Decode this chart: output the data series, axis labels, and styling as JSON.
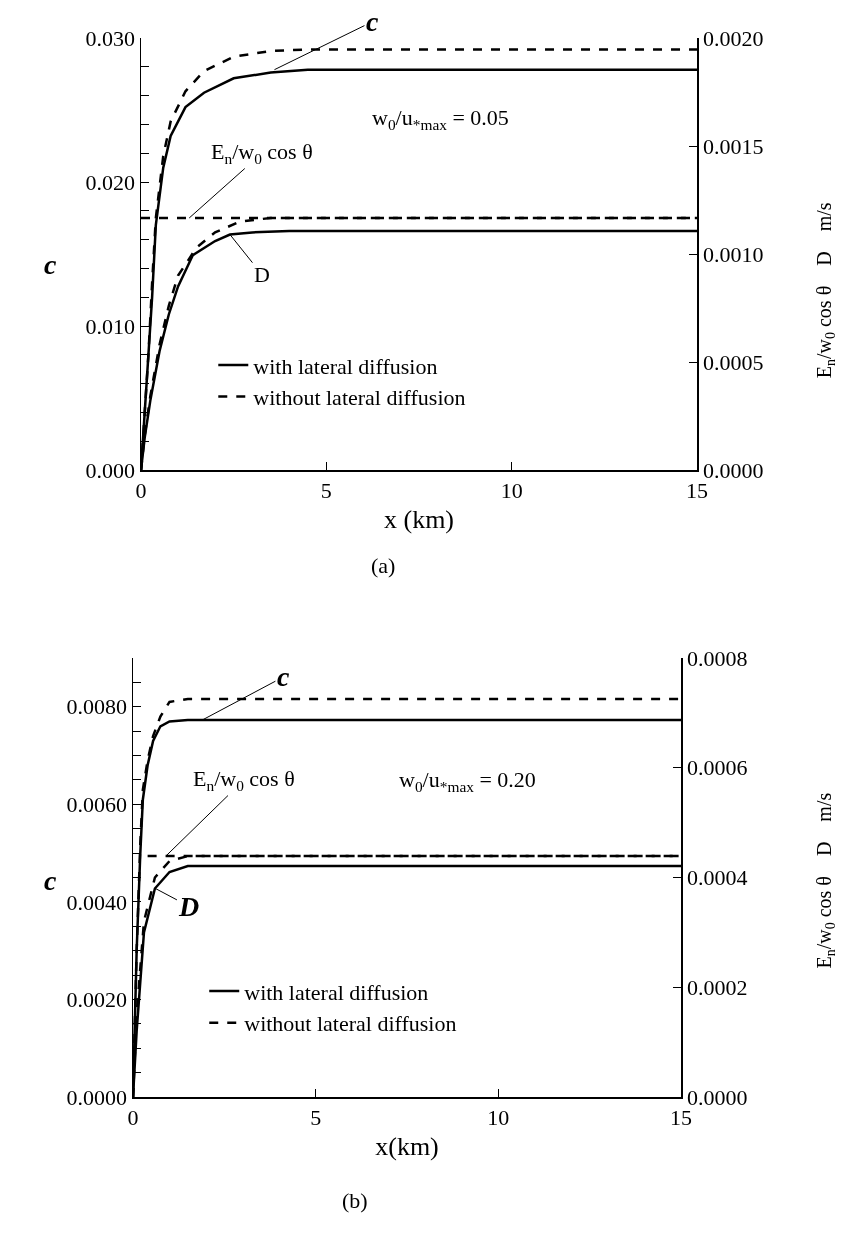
{
  "chart_data": [
    {
      "type": "line",
      "xlabel": "x (km)",
      "ylabel": "c",
      "y2label": "E$_{n}$/w$_{0}$ cos θ    D    m/s",
      "legend": "bottom left",
      "annotations": [
        {
          "text": "c",
          "x": 3.6,
          "y": 0.0278
        },
        "w$_{0}$/u$_{*max}$ = 0.05",
        {
          "text": "E$_{n}$/w$_{0}$ cos θ",
          "x": 1.3,
          "y": 0.0175
        },
        {
          "text": "D",
          "x": 2.4,
          "y": 0.01635
        },
        "(a)"
      ],
      "xlim": [
        0,
        15
      ],
      "xticks": [
        0,
        5,
        10,
        15
      ],
      "ylim": [
        0,
        0.03
      ],
      "yticks": [
        {
          "value": 0,
          "label": "0.000"
        },
        {
          "value": 0.002,
          "label": null
        },
        {
          "value": 0.004,
          "label": null
        },
        {
          "value": 0.006,
          "label": null
        },
        {
          "value": 0.008,
          "label": null
        },
        {
          "value": 0.01,
          "label": "0.010"
        },
        {
          "value": 0.012,
          "label": null
        },
        {
          "value": 0.014,
          "label": null
        },
        {
          "value": 0.016,
          "label": null
        },
        {
          "value": 0.018,
          "label": null
        },
        {
          "value": 0.02,
          "label": "0.020"
        },
        {
          "value": 0.022,
          "label": null
        },
        {
          "value": 0.024,
          "label": null
        },
        {
          "value": 0.026,
          "label": null
        },
        {
          "value": 0.028,
          "label": null
        },
        {
          "value": 0.03,
          "label": "0.030"
        }
      ],
      "y2lim": [
        0,
        0.002
      ],
      "y2ticks": [
        {
          "value": 0,
          "label": "0.0000"
        },
        {
          "value": 0.0005,
          "label": "0.0005"
        },
        {
          "value": 0.001,
          "label": "0.0010"
        },
        {
          "value": 0.0015,
          "label": "0.0015"
        },
        {
          "value": 0.002,
          "label": "0.0020"
        }
      ],
      "series": [
        {
          "name": "with lateral diffusion",
          "color": "#000000",
          "line_style": "solid",
          "x": [
            0,
            0.1,
            0.2,
            0.3,
            0.4,
            0.6,
            0.8,
            1.2,
            1.7,
            2.5,
            3.5,
            4.5,
            15
          ],
          "values": [
            0,
            0.004,
            0.008,
            0.012,
            0.017,
            0.021,
            0.0232,
            0.0252,
            0.0262,
            0.0272,
            0.0276,
            0.0278,
            0.0278
          ]
        },
        {
          "name": "without lateral diffusion",
          "color": "#000000",
          "line_style": "dashed",
          "x": [
            0,
            0.1,
            0.2,
            0.3,
            0.4,
            0.6,
            0.8,
            1.2,
            1.7,
            2.5,
            3.5,
            4.5,
            15
          ],
          "values": [
            0,
            0.004,
            0.008,
            0.013,
            0.0175,
            0.0218,
            0.0242,
            0.0263,
            0.0277,
            0.0287,
            0.0291,
            0.0292,
            0.0292
          ]
        },
        {
          "color": "#000000",
          "line_style": "solid",
          "axis": "y2",
          "x": [
            0,
            0.1,
            0.25,
            0.5,
            0.75,
            1,
            1.4,
            2,
            2.4,
            3,
            4,
            15
          ],
          "values": [
            0,
            0.00015,
            0.00032,
            0.00055,
            0.00072,
            0.00085,
            0.000995,
            0.00106,
            0.00109,
            0.0011,
            0.001106,
            0.001106
          ]
        },
        {
          "color": "#000000",
          "line_style": "dashed",
          "axis": "y2",
          "x": [
            0,
            0.1,
            0.25,
            0.5,
            0.75,
            1,
            1.5,
            2,
            2.67,
            3.5,
            15
          ],
          "values": [
            0,
            0.00016,
            0.00034,
            0.00058,
            0.00076,
            0.0009,
            0.00103,
            0.0011,
            0.00115,
            0.001167,
            0.001167
          ]
        },
        {
          "color": "#000000",
          "line_style": "dashed",
          "axis": "y2",
          "x": [
            0,
            15
          ],
          "values": [
            0.001167,
            0.001167
          ]
        }
      ]
    },
    {
      "type": "line",
      "xlabel": "x(km)",
      "ylabel": "c",
      "y2label": "E$_{n}$/w$_{0}$ cos θ    D    m/s",
      "legend": "bottom left",
      "annotations": [
        {
          "text": "c",
          "x": 1.9,
          "y": 0.00773
        },
        "w$_{0}$/u$_{*max}$ = 0.20",
        {
          "text": "E$_{n}$/w$_{0}$ cos θ",
          "x": 0.9,
          "y": 0.00494
        },
        {
          "text": "D",
          "x": 0.6,
          "y": 0.00428
        },
        "(b)"
      ],
      "xlim": [
        0,
        15
      ],
      "xticks": [
        0,
        5,
        10,
        15
      ],
      "ylim": [
        0,
        0.009
      ],
      "yticks": [
        {
          "value": 0,
          "label": "0.0000"
        },
        {
          "value": 0.0005,
          "label": null
        },
        {
          "value": 0.001,
          "label": null
        },
        {
          "value": 0.0015,
          "label": null
        },
        {
          "value": 0.002,
          "label": "0.0020"
        },
        {
          "value": 0.0025,
          "label": null
        },
        {
          "value": 0.003,
          "label": null
        },
        {
          "value": 0.0035,
          "label": null
        },
        {
          "value": 0.004,
          "label": "0.0040"
        },
        {
          "value": 0.0045,
          "label": null
        },
        {
          "value": 0.005,
          "label": null
        },
        {
          "value": 0.0055,
          "label": null
        },
        {
          "value": 0.006,
          "label": "0.0060"
        },
        {
          "value": 0.0065,
          "label": null
        },
        {
          "value": 0.007,
          "label": null
        },
        {
          "value": 0.0075,
          "label": null
        },
        {
          "value": 0.008,
          "label": "0.0080"
        },
        {
          "value": 0.0085,
          "label": null
        }
      ],
      "y2lim": [
        0,
        0.0008
      ],
      "y2ticks": [
        {
          "value": 0,
          "label": "0.0000"
        },
        {
          "value": 0.0002,
          "label": "0.0002"
        },
        {
          "value": 0.0004,
          "label": "0.0004"
        },
        {
          "value": 0.0006,
          "label": "0.0006"
        },
        {
          "value": 0.0008,
          "label": "0.0008"
        }
      ],
      "series": [
        {
          "name": "with lateral diffusion",
          "color": "#000000",
          "line_style": "solid",
          "x": [
            0,
            0.05,
            0.1,
            0.2,
            0.27,
            0.4,
            0.55,
            0.75,
            1,
            1.5,
            15
          ],
          "values": [
            0,
            0.0015,
            0.003,
            0.005,
            0.0061,
            0.0068,
            0.0073,
            0.0076,
            0.0077,
            0.00773,
            0.00773
          ]
        },
        {
          "name": "without lateral diffusion",
          "color": "#000000",
          "line_style": "dashed",
          "x": [
            0,
            0.05,
            0.1,
            0.2,
            0.27,
            0.4,
            0.55,
            0.75,
            1,
            1.5,
            15
          ],
          "values": [
            0,
            0.0015,
            0.003,
            0.0052,
            0.0063,
            0.0069,
            0.0074,
            0.0078,
            0.0081,
            0.00816,
            0.00816
          ]
        },
        {
          "color": "#000000",
          "line_style": "solid",
          "axis": "y2",
          "x": [
            0,
            0.1,
            0.3,
            0.6,
            1,
            1.5,
            15
          ],
          "values": [
            0,
            0.00012,
            0.0003,
            0.00038,
            0.00041,
            0.000421,
            0.000421
          ]
        },
        {
          "color": "#000000",
          "line_style": "dashed",
          "axis": "y2",
          "x": [
            0,
            0.1,
            0.3,
            0.6,
            1,
            1.5,
            15
          ],
          "values": [
            0,
            0.00015,
            0.00032,
            0.0004,
            0.00043,
            0.000439,
            0.000439
          ]
        },
        {
          "color": "#000000",
          "line_style": "dashed",
          "axis": "y2",
          "x": [
            0.4,
            15
          ],
          "values": [
            0.000439,
            0.000439
          ]
        }
      ]
    }
  ]
}
